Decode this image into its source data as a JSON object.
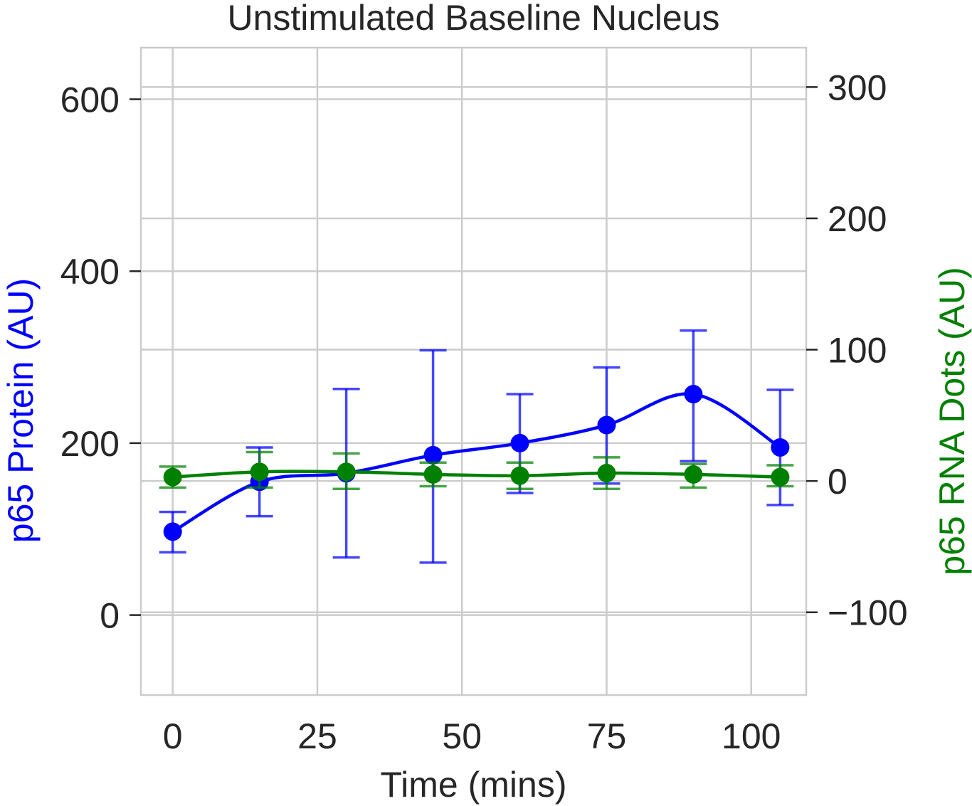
{
  "chart_data": {
    "type": "line",
    "title": "Unstimulated Baseline Nucleus",
    "xlabel": "Time (mins)",
    "ylabel_left": "p65 Protein (AU)",
    "ylabel_right": "p65 RNA Dots (AU)",
    "xlim": [
      -5.5,
      109.5
    ],
    "ylim_left": [
      -93,
      660
    ],
    "ylim_right": [
      -163,
      330
    ],
    "x_ticks": [
      "0",
      "25",
      "50",
      "75",
      "100"
    ],
    "x_tick_values": [
      0,
      25,
      50,
      75,
      100
    ],
    "y_left_ticks": [
      "0",
      "200",
      "400",
      "600"
    ],
    "y_left_tick_values": [
      0,
      200,
      400,
      600
    ],
    "y_right_ticks": [
      "−100",
      "0",
      "100",
      "200",
      "300"
    ],
    "y_right_tick_values": [
      -100,
      0,
      100,
      200,
      300
    ],
    "grid": true,
    "x": [
      0,
      15,
      30,
      45,
      60,
      75,
      90,
      105
    ],
    "series": [
      {
        "axis": "left",
        "color": "#0000ff",
        "values": [
          97,
          155,
          165,
          186,
          200,
          221,
          257,
          195
        ],
        "err_low": [
          73,
          115,
          67,
          61,
          142,
          153,
          179,
          128
        ],
        "err_high": [
          120,
          195,
          263,
          308,
          257,
          288,
          331,
          262
        ]
      },
      {
        "axis": "right",
        "color": "#008000",
        "values": [
          3,
          7,
          7,
          5,
          4,
          6,
          5,
          3
        ],
        "err_low": [
          -5,
          -5,
          -6,
          -4,
          -6,
          -6,
          -5,
          -4
        ],
        "err_high": [
          11,
          22,
          21,
          14,
          14,
          18,
          13,
          12
        ]
      }
    ]
  }
}
